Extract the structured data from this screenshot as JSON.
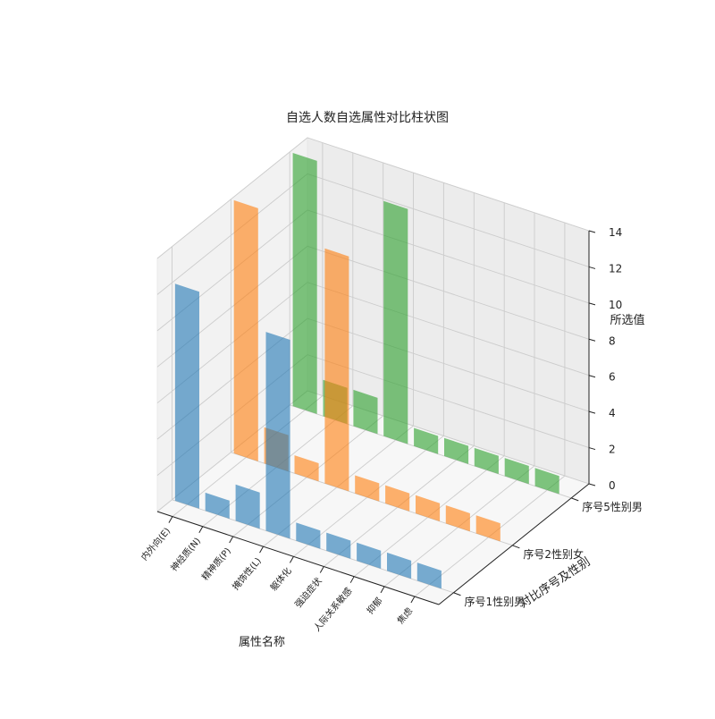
{
  "chart_data": {
    "type": "bar",
    "title": "自选人数自选属性对比柱状图",
    "xlabel": "属性名称",
    "ylabel": "对比序号及性别",
    "zlabel": "所选值",
    "categories": [
      "内外向(E)",
      "神经质(N)",
      "精神质(P)",
      "掩饰性(L)",
      "躯体化",
      "强迫症状",
      "人际关系敏感",
      "抑郁",
      "焦虑"
    ],
    "zticks": [
      0,
      2,
      4,
      6,
      8,
      10,
      12,
      14
    ],
    "zlim": [
      0,
      14
    ],
    "series": [
      {
        "name": "序号1性别男",
        "color": "#1f77b4",
        "values": [
          12,
          1,
          2,
          11,
          1,
          1,
          1,
          1,
          1
        ]
      },
      {
        "name": "序号2性别女",
        "color": "#ff7f0e",
        "values": [
          14,
          2,
          1,
          13,
          1,
          1,
          1,
          1,
          1
        ]
      },
      {
        "name": "序号5性别男",
        "color": "#2ca02c",
        "values": [
          14,
          2,
          2,
          13,
          1,
          1,
          1,
          1,
          1
        ]
      }
    ],
    "grid": true
  }
}
